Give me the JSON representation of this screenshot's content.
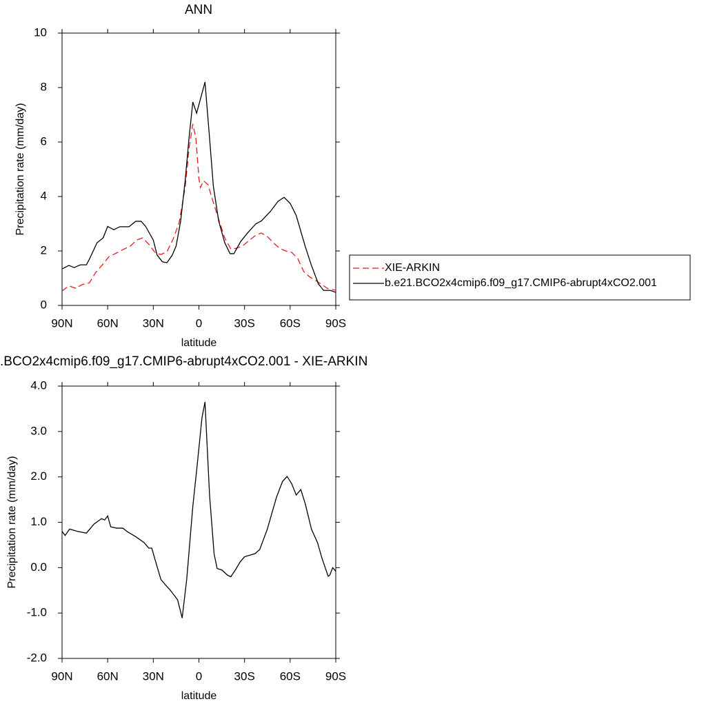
{
  "chart_data": [
    {
      "type": "line",
      "title": "ANN",
      "x_label": "latitude",
      "y_label": "Precipitation rate (mm/day)",
      "xlim": [
        90,
        -90
      ],
      "ylim": [
        0,
        10
      ],
      "xticks": [
        {
          "value": 90,
          "label": "90N"
        },
        {
          "value": 60,
          "label": "60N"
        },
        {
          "value": 30,
          "label": "30N"
        },
        0,
        {
          "value": -30,
          "label": "30S"
        },
        {
          "value": -60,
          "label": "60S"
        },
        {
          "value": -90,
          "label": "90S"
        }
      ],
      "yticks": [
        0,
        2,
        4,
        6,
        8,
        10
      ],
      "legend_position": "right",
      "series": [
        {
          "name": "XIE-ARKIN",
          "color": "#e41a1c",
          "style": "dashed",
          "x": [
            90,
            85.5,
            81,
            77,
            72,
            68,
            63,
            59,
            55,
            50,
            45,
            41,
            37,
            33,
            29,
            25,
            21,
            17,
            13,
            9,
            6.5,
            4,
            2,
            0,
            -1,
            -3,
            -6,
            -9,
            -13,
            -17,
            -21,
            -25,
            -29,
            -33,
            -37,
            -41,
            -45,
            -49,
            -53,
            -57,
            -61,
            -65,
            -69,
            -73,
            -77,
            -81,
            -85,
            -90
          ],
          "values": [
            0.53,
            0.72,
            0.63,
            0.76,
            0.83,
            1.2,
            1.52,
            1.8,
            1.9,
            2.05,
            2.18,
            2.4,
            2.48,
            2.25,
            1.95,
            1.87,
            1.97,
            2.43,
            3.04,
            4.35,
            5.77,
            6.66,
            6.15,
            4.66,
            4.33,
            4.58,
            4.43,
            3.87,
            3.16,
            2.48,
            2.07,
            2.1,
            2.2,
            2.38,
            2.56,
            2.66,
            2.53,
            2.3,
            2.1,
            2.0,
            1.95,
            1.72,
            1.24,
            1.04,
            0.91,
            0.76,
            0.61,
            0.56
          ]
        },
        {
          "name": "b.e21.BCO2x4cmip6.f09_g17.CMIP6-abrupt4xCO2.001",
          "color": "#000000",
          "style": "solid",
          "x": [
            90,
            85.5,
            82,
            78,
            74,
            72,
            67,
            63,
            60,
            56,
            52,
            46,
            41.5,
            38,
            35,
            30,
            27.5,
            24,
            21,
            17.5,
            15,
            12,
            9,
            6.5,
            4,
            1.5,
            -4,
            -7,
            -9.5,
            -13,
            -17,
            -20.5,
            -23,
            -27.5,
            -32,
            -37.5,
            -41,
            -47,
            -52,
            -56,
            -60,
            -64,
            -70,
            -74,
            -78.5,
            -82,
            -86.5,
            -90
          ],
          "values": [
            1.34,
            1.47,
            1.39,
            1.49,
            1.49,
            1.7,
            2.3,
            2.48,
            2.9,
            2.78,
            2.89,
            2.89,
            3.09,
            3.09,
            2.9,
            2.4,
            1.85,
            1.6,
            1.57,
            1.85,
            2.18,
            3.1,
            4.6,
            6.15,
            7.47,
            7.06,
            8.2,
            6.15,
            4.38,
            3.1,
            2.3,
            1.9,
            1.9,
            2.35,
            2.66,
            3.0,
            3.1,
            3.45,
            3.82,
            3.97,
            3.75,
            3.3,
            2.15,
            1.47,
            0.8,
            0.55,
            0.55,
            0.48
          ]
        }
      ]
    },
    {
      "type": "line",
      "title": ".BCO2x4cmip6.f09_g17.CMIP6-abrupt4xCO2.001 - XIE-ARKIN",
      "x_label": "latitude",
      "y_label": "Precipitation rate (mm/day)",
      "xlim": [
        90,
        -90
      ],
      "ylim": [
        -2,
        4
      ],
      "xticks": [
        {
          "value": 90,
          "label": "90N"
        },
        {
          "value": 60,
          "label": "60N"
        },
        {
          "value": 30,
          "label": "30N"
        },
        0,
        {
          "value": -30,
          "label": "30S"
        },
        {
          "value": -60,
          "label": "60S"
        },
        {
          "value": -90,
          "label": "90S"
        }
      ],
      "yticks": [
        {
          "value": -2,
          "label": "-2.0"
        },
        {
          "value": -1,
          "label": "-1.0"
        },
        {
          "value": 0,
          "label": "0.0"
        },
        {
          "value": 1,
          "label": "1.0"
        },
        {
          "value": 2,
          "label": "2.0"
        },
        {
          "value": 3,
          "label": "3.0"
        },
        {
          "value": 4,
          "label": "4.0"
        }
      ],
      "color": "#000000",
      "x": [
        90,
        88,
        85,
        80,
        74,
        69,
        64,
        62,
        60,
        58,
        54,
        50,
        47,
        41,
        36,
        33,
        31,
        28,
        25,
        22,
        19,
        16,
        14,
        11,
        8,
        4,
        1,
        -2,
        -4,
        -7,
        -10,
        -12,
        -15,
        -19,
        -21,
        -24,
        -27,
        -30,
        -34,
        -37,
        -40,
        -45,
        -48,
        -51,
        -55,
        -58,
        -61,
        -64,
        -67,
        -70,
        -74,
        -78,
        -81,
        -85,
        -86,
        -88,
        -90
      ],
      "values": [
        0.8,
        0.71,
        0.85,
        0.8,
        0.76,
        0.96,
        1.08,
        1.05,
        1.14,
        0.9,
        0.87,
        0.87,
        0.79,
        0.67,
        0.55,
        0.43,
        0.43,
        0.08,
        -0.26,
        -0.38,
        -0.49,
        -0.62,
        -0.71,
        -1.11,
        -0.25,
        1.35,
        2.3,
        3.3,
        3.65,
        1.6,
        0.3,
        -0.02,
        -0.05,
        -0.17,
        -0.2,
        -0.05,
        0.12,
        0.24,
        0.28,
        0.31,
        0.4,
        0.85,
        1.2,
        1.55,
        1.9,
        2.01,
        1.85,
        1.6,
        1.72,
        1.4,
        0.85,
        0.55,
        0.2,
        -0.19,
        -0.17,
        0.0,
        -0.08
      ]
    }
  ]
}
